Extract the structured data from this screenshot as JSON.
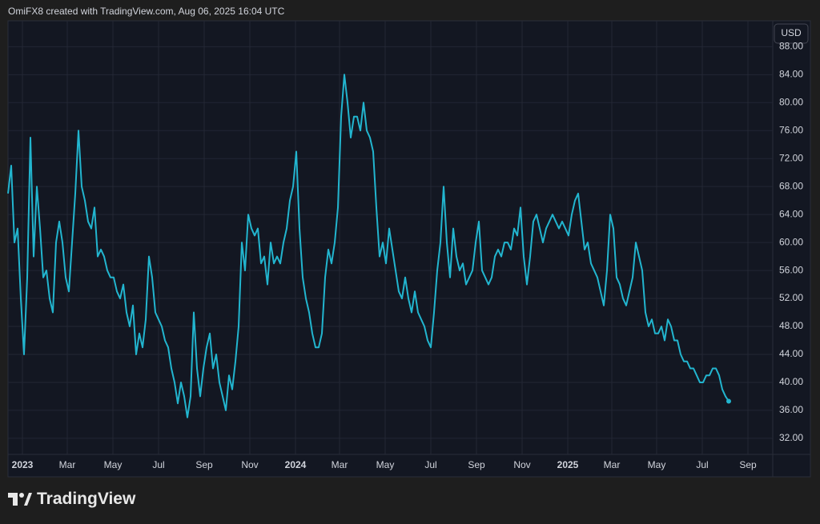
{
  "header": {
    "text": "OmiFX8 created with TradingView.com, Aug 06, 2025 16:04 UTC"
  },
  "chart_data": {
    "type": "line",
    "currency": "USD",
    "color": "#22b5cf",
    "grid": true,
    "values": [
      67,
      71,
      60,
      62,
      52,
      44,
      55,
      75,
      58,
      68,
      62,
      55,
      56,
      52,
      50,
      60,
      63,
      60,
      55,
      53,
      60,
      67,
      76,
      68,
      66,
      63,
      62,
      65,
      58,
      59,
      58,
      56,
      55,
      55,
      53,
      52,
      54,
      50,
      48,
      51,
      44,
      47,
      45,
      49,
      58,
      55,
      50,
      49,
      48,
      46,
      45,
      42,
      40,
      37,
      40,
      38,
      35,
      38,
      50,
      42,
      38,
      42,
      45,
      47,
      42,
      44,
      40,
      38,
      36,
      41,
      39,
      43,
      48,
      60,
      56,
      64,
      62,
      61,
      62,
      57,
      58,
      54,
      60,
      57,
      58,
      57,
      60,
      62,
      66,
      68,
      73,
      62,
      55,
      52,
      50,
      47,
      45,
      45,
      47,
      55,
      59,
      57,
      60,
      65,
      78,
      84,
      80,
      75,
      78,
      78,
      76,
      80,
      76,
      75,
      73,
      65,
      58,
      60,
      57,
      62,
      59,
      56,
      53,
      52,
      55,
      52,
      50,
      53,
      50,
      49,
      48,
      46,
      45,
      50,
      56,
      60,
      68,
      60,
      55,
      62,
      58,
      56,
      57,
      54,
      55,
      56,
      60,
      63,
      56,
      55,
      54,
      55,
      58,
      59,
      58,
      60,
      60,
      59,
      62,
      61,
      65,
      58,
      54,
      58,
      63,
      64,
      62,
      60,
      62,
      63,
      64,
      63,
      62,
      63,
      62,
      61,
      64,
      66,
      67,
      63,
      59,
      60,
      57,
      56,
      55,
      53,
      51,
      56,
      64,
      62,
      55,
      54,
      52,
      51,
      53,
      55,
      60,
      58,
      56,
      50,
      48,
      49,
      47,
      47,
      48,
      46,
      49,
      48,
      46,
      46,
      44,
      43,
      43,
      42,
      42,
      41,
      40,
      40,
      41,
      41,
      42,
      42,
      41,
      39,
      38,
      37.3
    ],
    "xlim": [
      0,
      238.75
    ],
    "xticks": [
      {
        "value": 4.5,
        "label": "2023"
      },
      {
        "value": 18.5,
        "label": "Mar"
      },
      {
        "value": 32.75,
        "label": "May"
      },
      {
        "value": 47,
        "label": "Jul"
      },
      {
        "value": 61.25,
        "label": "Sep"
      },
      {
        "value": 75.5,
        "label": "Nov"
      },
      {
        "value": 89.75,
        "label": "2024"
      },
      {
        "value": 103.5,
        "label": "Mar"
      },
      {
        "value": 117.75,
        "label": "May"
      },
      {
        "value": 132,
        "label": "Jul"
      },
      {
        "value": 146.25,
        "label": "Sep"
      },
      {
        "value": 160.5,
        "label": "Nov"
      },
      {
        "value": 174.75,
        "label": "2025"
      },
      {
        "value": 188.5,
        "label": "Mar"
      },
      {
        "value": 202.5,
        "label": "May"
      },
      {
        "value": 216.75,
        "label": "Jul"
      },
      {
        "value": 231,
        "label": "Sep"
      }
    ],
    "ylim": [
      29.7,
      91.7
    ],
    "yticks": [
      {
        "value": 32,
        "label": "32.00"
      },
      {
        "value": 36,
        "label": "36.00"
      },
      {
        "value": 40,
        "label": "40.00"
      },
      {
        "value": 44,
        "label": "44.00"
      },
      {
        "value": 48,
        "label": "48.00"
      },
      {
        "value": 52,
        "label": "52.00"
      },
      {
        "value": 56,
        "label": "56.00"
      },
      {
        "value": 60,
        "label": "60.00"
      },
      {
        "value": 64,
        "label": "64.00"
      },
      {
        "value": 68,
        "label": "68.00"
      },
      {
        "value": 72,
        "label": "72.00"
      },
      {
        "value": 76,
        "label": "76.00"
      },
      {
        "value": 80,
        "label": "80.00"
      },
      {
        "value": 84,
        "label": "84.00"
      },
      {
        "value": 88,
        "label": "88.00"
      }
    ]
  },
  "footer": {
    "brand": "TradingView"
  }
}
